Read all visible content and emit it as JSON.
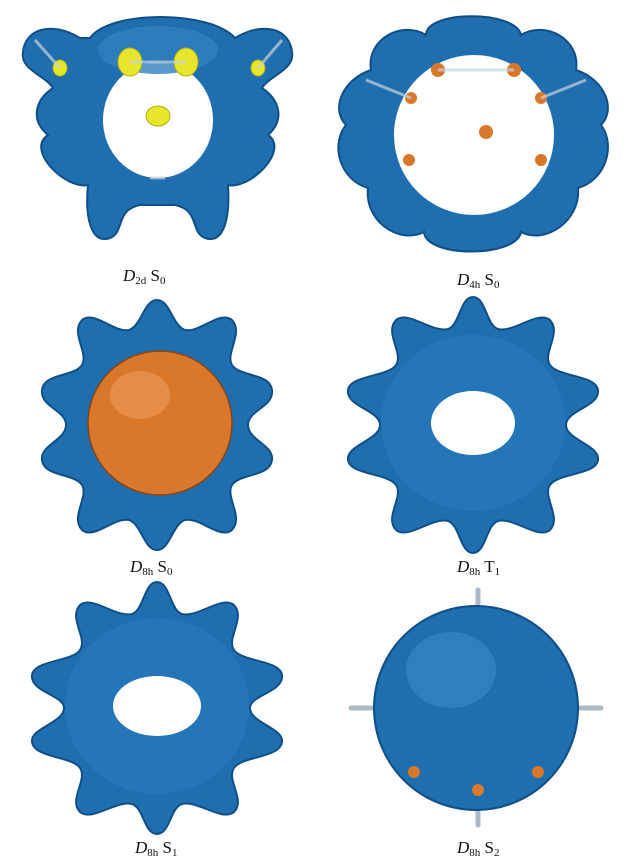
{
  "panels": [
    {
      "id": "d2d-s0",
      "sym": "D",
      "sub": "2d",
      "state": "S",
      "state_sub": "0",
      "inner": "yellow-lobes"
    },
    {
      "id": "d4h-s0",
      "sym": "D",
      "sub": "4h",
      "state": "S",
      "state_sub": "0",
      "inner": "orange-dots"
    },
    {
      "id": "d8h-s0",
      "sym": "D",
      "sub": "8h",
      "state": "S",
      "state_sub": "0",
      "inner": "orange-sphere"
    },
    {
      "id": "d8h-t1",
      "sym": "D",
      "sub": "8h",
      "state": "T",
      "state_sub": "1",
      "inner": "torus"
    },
    {
      "id": "d8h-s1",
      "sym": "D",
      "sub": "8h",
      "state": "S",
      "state_sub": "1",
      "inner": "torus"
    },
    {
      "id": "d8h-s2",
      "sym": "D",
      "sub": "8h",
      "state": "S",
      "state_sub": "2",
      "inner": "blue-sphere"
    }
  ],
  "colors": {
    "isosurface_blue": "#1f6fb0",
    "isosurface_dark": "#0f4f87",
    "isosurface_light": "#4f9ad6",
    "orange": "#d9782a",
    "yellow": "#e6e62a",
    "bond": "#c8d2dc"
  }
}
